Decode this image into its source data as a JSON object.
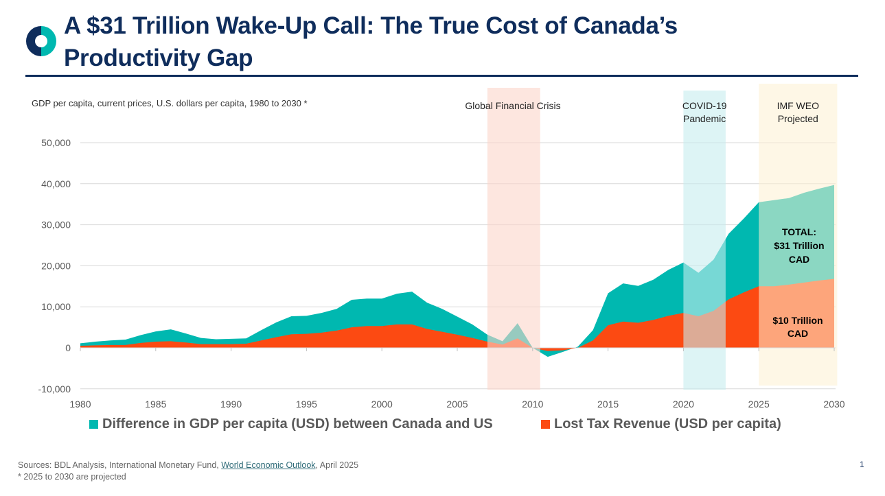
{
  "title_line1": "A $31 Trillion Wake-Up Call: The True Cost of Canada’s",
  "title_line2": "Productivity Gap",
  "colors": {
    "navy": "#0f2d5c",
    "teal": "#00b8b0",
    "orange": "#fc4a12",
    "gfc_band": "#fbd5ca",
    "covid_band": "#c6ecee",
    "imf_band": "#fdf0d2"
  },
  "footer": {
    "sources_prefix": "Sources: BDL Analysis, International Monetary Fund, ",
    "sources_link": "World Economic Outlook",
    "sources_suffix": ", April 2025",
    "note": "* 2025 to 2030 are projected",
    "page_number": "1"
  },
  "chart_data": {
    "type": "area",
    "subtitle": "GDP per capita, current prices, U.S. dollars per capita, 1980 to 2030 *",
    "xlim": [
      1980,
      2030
    ],
    "ylim": [
      -10000,
      50000
    ],
    "x_ticks": [
      "1980",
      "1985",
      "1990",
      "1995",
      "2000",
      "2005",
      "2010",
      "2015",
      "2020",
      "2025",
      "2030"
    ],
    "y_ticks": [
      "-10,000",
      "0",
      "10,000",
      "20,000",
      "30,000",
      "40,000",
      "50,000"
    ],
    "y_tick_values": [
      -10000,
      0,
      10000,
      20000,
      30000,
      40000,
      50000
    ],
    "grid": true,
    "legend_position": "bottom",
    "x": [
      1980,
      1981,
      1982,
      1983,
      1984,
      1985,
      1986,
      1987,
      1988,
      1989,
      1990,
      1991,
      1992,
      1993,
      1994,
      1995,
      1996,
      1997,
      1998,
      1999,
      2000,
      2001,
      2002,
      2003,
      2004,
      2005,
      2006,
      2007,
      2008,
      2009,
      2010,
      2011,
      2012,
      2013,
      2014,
      2015,
      2016,
      2017,
      2018,
      2019,
      2020,
      2021,
      2022,
      2023,
      2024,
      2025,
      2026,
      2027,
      2028,
      2029,
      2030
    ],
    "series": [
      {
        "name": "Difference in GDP per capita (USD) between Canada and US",
        "color": "#00b8b0",
        "values": [
          1100,
          1500,
          1800,
          2000,
          3100,
          4000,
          4500,
          3500,
          2400,
          2100,
          2200,
          2300,
          4300,
          6200,
          7700,
          7800,
          8500,
          9500,
          11700,
          12000,
          12000,
          13200,
          13700,
          11000,
          9500,
          7600,
          5700,
          3200,
          1600,
          6000,
          0,
          -2200,
          -1000,
          300,
          4300,
          13300,
          15700,
          15100,
          16600,
          19000,
          20800,
          18300,
          21500,
          27800,
          31500,
          35500,
          36000,
          36500,
          37800,
          38800,
          39700
        ]
      },
      {
        "name": "Lost Tax Revenue (USD per capita)",
        "color": "#fc4a12",
        "values": [
          500,
          600,
          700,
          700,
          1200,
          1500,
          1600,
          1300,
          900,
          900,
          900,
          1000,
          1800,
          2600,
          3300,
          3400,
          3700,
          4200,
          5000,
          5300,
          5300,
          5700,
          5700,
          4600,
          3900,
          3200,
          2400,
          1500,
          800,
          2300,
          0,
          -800,
          -600,
          0,
          1800,
          5500,
          6400,
          6100,
          6800,
          7800,
          8500,
          7700,
          9000,
          11800,
          13500,
          15000,
          15000,
          15400,
          15900,
          16400,
          16800
        ]
      }
    ],
    "bands": [
      {
        "label": "Global Financial Crisis",
        "from": 2007,
        "to": 2010.5
      },
      {
        "label": "COVID-19 Pandemic",
        "from": 2020,
        "to": 2022.8
      },
      {
        "label": "IMF WEO Projected",
        "from": 2025,
        "to": 2030.2
      }
    ],
    "annotations": {
      "total": "TOTAL: $31 Trillion CAD",
      "tax": "$10 Trillion CAD"
    }
  }
}
